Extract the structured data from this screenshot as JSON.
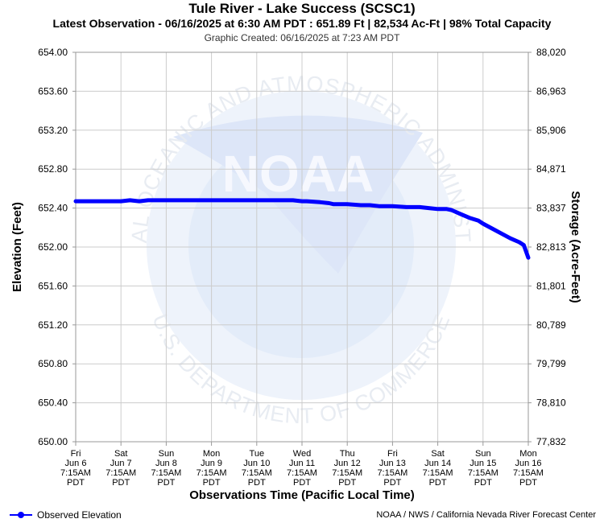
{
  "header": {
    "title": "Tule River - Lake Success (SCSC1)",
    "subtitle": "Latest Observation - 06/16/2025 at 6:30 AM PDT : 651.89 Ft | 82,534 Ac-Ft | 98% Total Capacity",
    "created": "Graphic Created: 06/16/2025 at 7:23 AM PDT"
  },
  "legend": {
    "label": "Observed Elevation",
    "color": "#0000ff"
  },
  "credit": "NOAA / NWS / California Nevada River Forecast Center",
  "watermark": {
    "text_top": "NATIONAL OCEANIC AND ATMOSPHERIC ADMINISTRATION",
    "text_bottom": "U.S. DEPARTMENT OF COMMERCE",
    "logo": "NOAA"
  },
  "chart_data": {
    "type": "line",
    "ylabel": "Elevation (Feet)",
    "y2label": "Storage (Acre-Feet)",
    "xlabel": "Observations Time (Pacific Local Time)",
    "ylim": [
      650.0,
      654.0
    ],
    "yticks": [
      "654.00",
      "653.60",
      "653.20",
      "652.80",
      "652.40",
      "652.00",
      "651.60",
      "651.20",
      "650.80",
      "650.40",
      "650.00"
    ],
    "y2ticks": [
      "88,020",
      "86,963",
      "85,906",
      "84,871",
      "83,837",
      "82,813",
      "81,801",
      "80,789",
      "79,799",
      "78,810",
      "77,832"
    ],
    "xticks": [
      [
        "Fri",
        "Jun 6",
        "7:15AM",
        "PDT"
      ],
      [
        "Sat",
        "Jun 7",
        "7:15AM",
        "PDT"
      ],
      [
        "Sun",
        "Jun 8",
        "7:15AM",
        "PDT"
      ],
      [
        "Mon",
        "Jun 9",
        "7:15AM",
        "PDT"
      ],
      [
        "Tue",
        "Jun 10",
        "7:15AM",
        "PDT"
      ],
      [
        "Wed",
        "Jun 11",
        "7:15AM",
        "PDT"
      ],
      [
        "Thu",
        "Jun 12",
        "7:15AM",
        "PDT"
      ],
      [
        "Fri",
        "Jun 13",
        "7:15AM",
        "PDT"
      ],
      [
        "Sat",
        "Jun 14",
        "7:15AM",
        "PDT"
      ],
      [
        "Sun",
        "Jun 15",
        "7:15AM",
        "PDT"
      ],
      [
        "Mon",
        "Jun 16",
        "7:15AM",
        "PDT"
      ]
    ],
    "grid": true,
    "series": [
      {
        "name": "Observed Elevation",
        "x_days": [
          0,
          0.5,
          1.0,
          1.2,
          1.4,
          1.6,
          2.0,
          3.0,
          4.0,
          4.8,
          5.0,
          5.1,
          5.4,
          5.6,
          5.7,
          6.0,
          6.3,
          6.5,
          6.7,
          7.0,
          7.3,
          7.6,
          7.8,
          8.0,
          8.2,
          8.3,
          8.5,
          8.7,
          8.9,
          9.0,
          9.2,
          9.4,
          9.6,
          9.8,
          9.9,
          10.0
        ],
        "values": [
          652.47,
          652.47,
          652.47,
          652.48,
          652.47,
          652.48,
          652.48,
          652.48,
          652.48,
          652.48,
          652.47,
          652.47,
          652.46,
          652.45,
          652.44,
          652.44,
          652.43,
          652.43,
          652.42,
          652.42,
          652.41,
          652.41,
          652.4,
          652.39,
          652.39,
          652.38,
          652.34,
          652.3,
          652.27,
          652.24,
          652.19,
          652.14,
          652.09,
          652.05,
          652.02,
          651.89
        ]
      }
    ]
  }
}
